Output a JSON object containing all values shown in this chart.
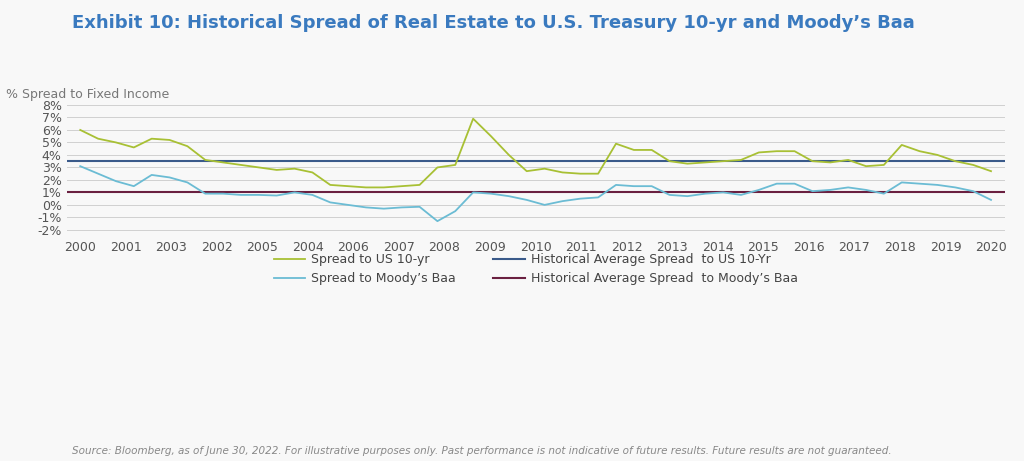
{
  "title": "Exhibit 10: Historical Spread of Real Estate to U.S. Treasury 10-yr and Moody’s Baa",
  "ylabel": "% Spread to Fixed Income",
  "source": "Source: Bloomberg, as of June 30, 2022. For illustrative purposes only. Past performance is not indicative of future results. Future results are not guaranteed.",
  "x_labels": [
    "2000",
    "2001",
    "2003",
    "2002",
    "2005",
    "2004",
    "2006",
    "2007",
    "2008",
    "2009",
    "2010",
    "2011",
    "2012",
    "2013",
    "2014",
    "2015",
    "2016",
    "2017",
    "2018",
    "2019",
    "2020"
  ],
  "spread_10yr": [
    6.0,
    5.3,
    5.0,
    4.6,
    5.3,
    5.2,
    4.7,
    3.6,
    3.4,
    3.2,
    3.0,
    2.8,
    2.9,
    2.6,
    1.6,
    1.5,
    1.4,
    1.4,
    1.5,
    1.6,
    3.0,
    3.2,
    6.9,
    5.5,
    4.0,
    2.7,
    2.9,
    2.6,
    2.5,
    2.5,
    4.9,
    4.4,
    4.4,
    3.5,
    3.3,
    3.4,
    3.5,
    3.6,
    4.2,
    4.3,
    4.3,
    3.5,
    3.4,
    3.6,
    3.1,
    3.2,
    4.8,
    4.3,
    4.0,
    3.5,
    3.2,
    2.7
  ],
  "spread_baa": [
    3.1,
    2.5,
    1.9,
    1.5,
    2.4,
    2.2,
    1.8,
    0.9,
    0.9,
    0.8,
    0.8,
    0.75,
    1.0,
    0.8,
    0.2,
    0.0,
    -0.2,
    -0.3,
    -0.2,
    -0.15,
    -1.3,
    -0.5,
    1.0,
    0.9,
    0.7,
    0.4,
    0.0,
    0.3,
    0.5,
    0.6,
    1.6,
    1.5,
    1.5,
    0.8,
    0.7,
    0.9,
    1.0,
    0.8,
    1.2,
    1.7,
    1.7,
    1.1,
    1.2,
    1.4,
    1.2,
    0.9,
    1.8,
    1.7,
    1.6,
    1.4,
    1.1,
    0.4
  ],
  "avg_10yr": 3.5,
  "avg_baa": 1.0,
  "ylim": [
    -2.5,
    8.5
  ],
  "yticks": [
    -2,
    -1,
    0,
    1,
    2,
    3,
    4,
    5,
    6,
    7,
    8
  ],
  "color_10yr": "#a8c034",
  "color_baa": "#6bbcd4",
  "color_avg_10yr": "#3a5a8a",
  "color_avg_baa": "#6a2040",
  "bg_color": "#f8f8f8",
  "title_color": "#3a7abf",
  "title_fontsize": 13,
  "label_fontsize": 9,
  "source_fontsize": 7.5,
  "legend_fontsize": 9
}
